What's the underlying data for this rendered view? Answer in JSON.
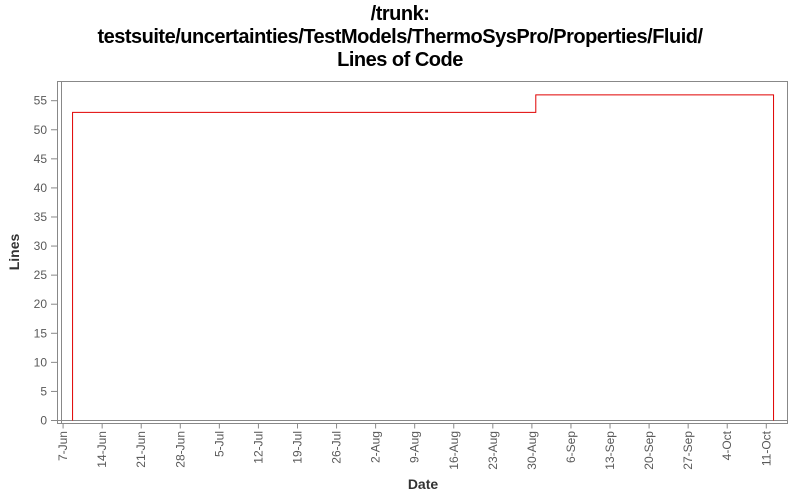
{
  "title": {
    "line1": "/trunk:",
    "line2": "testsuite/uncertainties/TestModels/ThermoSysPro/Properties/Fluid/",
    "line3": "Lines of Code"
  },
  "chart_data": {
    "type": "line",
    "style": "step",
    "title": "/trunk: testsuite/uncertainties/TestModels/ThermoSysPro/Properties/Fluid/ Lines of Code",
    "xlabel": "Date",
    "ylabel": "Lines",
    "legend": "none",
    "grid": false,
    "x_tick_labels": [
      "7-Jun",
      "14-Jun",
      "21-Jun",
      "28-Jun",
      "5-Jul",
      "12-Jul",
      "19-Jul",
      "26-Jul",
      "2-Aug",
      "9-Aug",
      "16-Aug",
      "23-Aug",
      "30-Aug",
      "6-Sep",
      "13-Sep",
      "20-Sep",
      "27-Sep",
      "4-Oct",
      "11-Oct"
    ],
    "x_tick_days": [
      1,
      8,
      15,
      22,
      29,
      36,
      43,
      50,
      57,
      64,
      71,
      78,
      85,
      92,
      99,
      106,
      113,
      120,
      127
    ],
    "x_domain_days": [
      0,
      130.8
    ],
    "x_domain_note": "day 0 = 6-Jun, weekly ticks, labels rotated 90deg reading bottom-to-top",
    "y_ticks": [
      0,
      5,
      10,
      15,
      20,
      25,
      30,
      35,
      40,
      45,
      50,
      55
    ],
    "ylim": [
      0,
      58.3
    ],
    "series": [
      {
        "name": "Lines of Code",
        "color": "#e00000",
        "points": [
          {
            "day": 2.7,
            "date": "9-Jun",
            "value": 0
          },
          {
            "day": 2.7,
            "date": "9-Jun",
            "value": 53
          },
          {
            "day": 85.7,
            "date": "31-Aug",
            "value": 53
          },
          {
            "day": 85.7,
            "date": "31-Aug",
            "value": 56
          },
          {
            "day": 128.3,
            "date": "12-Oct",
            "value": 56
          },
          {
            "day": 128.3,
            "date": "12-Oct",
            "value": 0
          }
        ]
      }
    ],
    "colors": {
      "axis": "#888888",
      "tick_label": "#595959",
      "axis_label": "#333333",
      "title": "#000000",
      "background": "#ffffff",
      "series": "#e00000"
    }
  }
}
